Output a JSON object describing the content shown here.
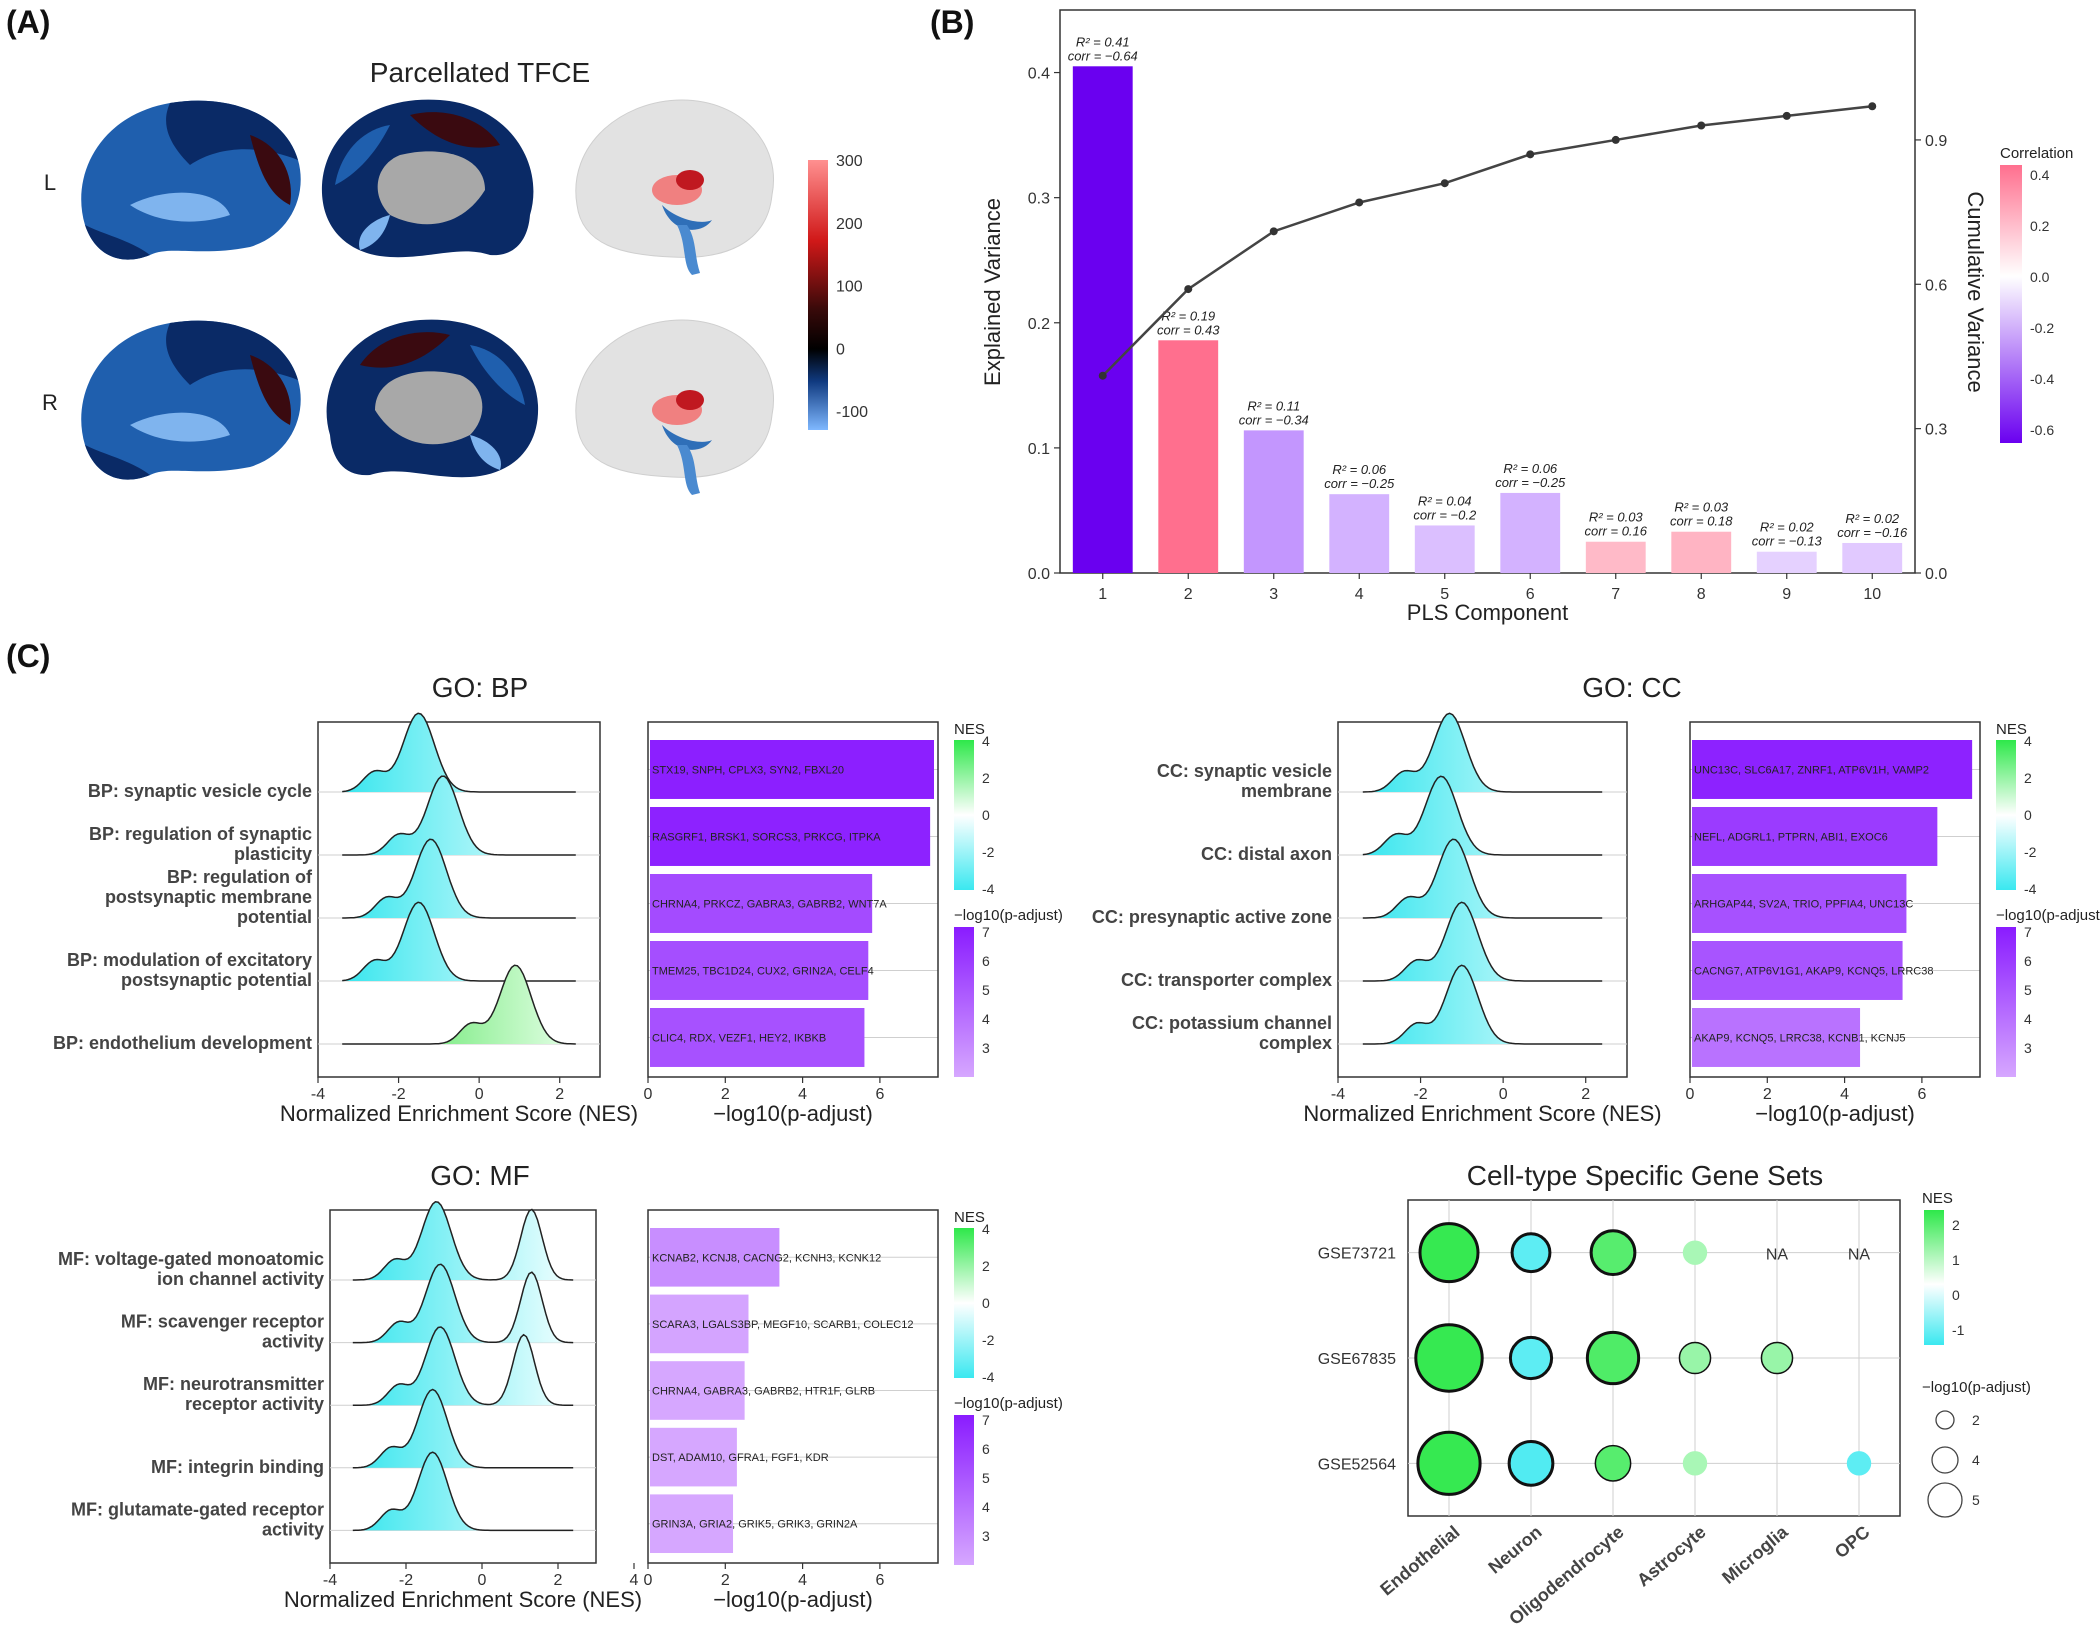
{
  "panels": {
    "a": "(A)",
    "b": "(B)",
    "c": "(C)"
  },
  "brain": {
    "title": "Parcellated TFCE",
    "row_labels": [
      "L",
      "R"
    ],
    "colorbar": {
      "ticks": [
        300,
        200,
        100,
        0,
        -100
      ],
      "min": -130,
      "max": 300
    },
    "colors": {
      "dark_blue": "#0a2a66",
      "mid_blue": "#1f5fae",
      "light_blue": "#7fb4ee",
      "dark_red": "#3a0a10",
      "gray": "#a8a8a8"
    }
  },
  "chart_data": [
    {
      "id": "pls",
      "type": "bar",
      "xlabel": "PLS Component",
      "ylabel": "Explained Variance",
      "y2label": "Cumulative Variance",
      "categories": [
        "1",
        "2",
        "3",
        "4",
        "5",
        "6",
        "7",
        "8",
        "9",
        "10"
      ],
      "values": [
        0.405,
        0.186,
        0.114,
        0.063,
        0.038,
        0.064,
        0.025,
        0.033,
        0.017,
        0.024
      ],
      "cumulative": [
        0.41,
        0.59,
        0.71,
        0.77,
        0.81,
        0.87,
        0.9,
        0.93,
        0.95,
        0.97
      ],
      "correlation": [
        -0.64,
        0.43,
        -0.34,
        -0.25,
        -0.2,
        -0.25,
        0.16,
        0.18,
        -0.13,
        -0.16
      ],
      "annotations_r2": [
        "R² = 0.41",
        "R² = 0.19",
        "R² = 0.11",
        "R² = 0.06",
        "R² = 0.04",
        "R² = 0.06",
        "R² = 0.03",
        "R² = 0.03",
        "R² = 0.02",
        "R² = 0.02"
      ],
      "annotations_corr": [
        "corr = −0.64",
        "corr = 0.43",
        "corr = −0.34",
        "corr = −0.25",
        "corr = −0.2",
        "corr = −0.25",
        "corr = 0.16",
        "corr = 0.18",
        "corr = −0.13",
        "corr = −0.16"
      ],
      "ylim": [
        0,
        0.4
      ],
      "yticks": [
        0.0,
        0.1,
        0.2,
        0.3,
        0.4
      ],
      "y2ticks": [
        0.0,
        0.3,
        0.6,
        0.9
      ],
      "legend": {
        "title": "Correlation",
        "ticks": [
          "0.4",
          "0.2",
          "0.0",
          "-0.2",
          "-0.4",
          "-0.6"
        ]
      }
    },
    {
      "id": "go_bp",
      "type": "ridge_bar",
      "title": "GO: BP",
      "terms": [
        "BP: synaptic vesicle cycle",
        "BP: regulation of synaptic plasticity",
        "BP: regulation of postsynaptic membrane potential",
        "BP: modulation of excitatory postsynaptic potential",
        "BP: endothelium development"
      ],
      "term_lines": [
        [
          "BP: synaptic vesicle cycle"
        ],
        [
          "BP: regulation of synaptic",
          "plasticity"
        ],
        [
          "BP: regulation of",
          "postsynaptic membrane",
          "potential"
        ],
        [
          "BP: modulation of excitatory",
          "postsynaptic potential"
        ],
        [
          "BP: endothelium development"
        ]
      ],
      "ridge_peaks": [
        -1.5,
        -0.9,
        -1.2,
        -1.5,
        0.9
      ],
      "ridge_xlim": [
        -4,
        3
      ],
      "ridge_xticks": [
        -4,
        -2,
        0,
        2
      ],
      "ridge_xlabel": "Normalized Enrichment Score (NES)",
      "bar_values": [
        7.4,
        7.3,
        5.8,
        5.7,
        5.6
      ],
      "bar_genes": [
        "STX19, SNPH, CPLX3, SYN2, FBXL20",
        "RASGRF1, BRSK1, SORCS3, PRKCG, ITPKA",
        "CHRNA4, PRKCZ, GABRA3, GABRB2, WNT7A",
        "TMEM25, TBC1D24, CUX2, GRIN2A, CELF4",
        "CLIC4, RDX, VEZF1, HEY2, IKBKB"
      ],
      "bar_xticks": [
        0,
        2,
        4,
        6
      ],
      "bar_xlabel": "−log10(p-adjust)",
      "legend_nes": {
        "title": "NES",
        "ticks": [
          "4",
          "2",
          "0",
          "-2",
          "-4"
        ]
      },
      "legend_p": {
        "title": "−log10(p-adjust)",
        "ticks": [
          "7",
          "6",
          "5",
          "4",
          "3"
        ]
      }
    },
    {
      "id": "go_cc",
      "type": "ridge_bar",
      "title": "GO: CC",
      "terms": [
        "CC: synaptic vesicle membrane",
        "CC: distal axon",
        "CC: presynaptic active zone",
        "CC: transporter complex",
        "CC: potassium channel complex"
      ],
      "term_lines": [
        [
          "CC: synaptic vesicle",
          "membrane"
        ],
        [
          "CC: distal axon"
        ],
        [
          "CC: presynaptic active zone"
        ],
        [
          "CC: transporter complex"
        ],
        [
          "CC: potassium channel",
          "complex"
        ]
      ],
      "ridge_peaks": [
        -1.3,
        -1.5,
        -1.2,
        -1.0,
        -1.0
      ],
      "ridge_xlim": [
        -4,
        3
      ],
      "ridge_xticks": [
        -4,
        -2,
        0,
        2
      ],
      "ridge_xlabel": "Normalized Enrichment Score (NES)",
      "bar_values": [
        7.3,
        6.4,
        5.6,
        5.5,
        4.4
      ],
      "bar_genes": [
        "UNC13C, SLC6A17, ZNRF1, ATP6V1H, VAMP2",
        "NEFL, ADGRL1, PTPRN, ABI1, EXOC6",
        "ARHGAP44, SV2A, TRIO, PPFIA4, UNC13C",
        "CACNG7, ATP6V1G1, AKAP9, KCNQ5, LRRC38",
        "AKAP9, KCNQ5, LRRC38, KCNB1, KCNJ5"
      ],
      "bar_xticks": [
        0,
        2,
        4,
        6
      ],
      "bar_xlabel": "−log10(p-adjust)",
      "legend_nes": {
        "title": "NES",
        "ticks": [
          "4",
          "2",
          "0",
          "-2",
          "-4"
        ]
      },
      "legend_p": {
        "title": "−log10(p-adjust)",
        "ticks": [
          "7",
          "6",
          "5",
          "4",
          "3"
        ]
      }
    },
    {
      "id": "go_mf",
      "type": "ridge_bar",
      "title": "GO: MF",
      "terms": [
        "MF: voltage-gated monoatomic ion channel activity",
        "MF: scavenger receptor activity",
        "MF: neurotransmitter receptor activity",
        "MF: integrin binding",
        "MF: glutamate-gated receptor activity"
      ],
      "term_lines": [
        [
          "MF: voltage-gated monoatomic",
          "ion channel activity"
        ],
        [
          "MF: scavenger receptor",
          "activity"
        ],
        [
          "MF: neurotransmitter",
          "receptor activity"
        ],
        [
          "MF: integrin binding"
        ],
        [
          "MF: glutamate-gated receptor",
          "activity"
        ]
      ],
      "ridge_peaks": [
        -1.2,
        -1.1,
        -1.1,
        -1.3,
        -1.3
      ],
      "ridge_peaks2": [
        1.3,
        1.3,
        1.1,
        null,
        null
      ],
      "ridge_xlim": [
        -4,
        3
      ],
      "ridge_xticks": [
        -4,
        -2,
        0,
        2,
        4
      ],
      "ridge_xlabel": "Normalized Enrichment Score (NES)",
      "bar_values": [
        3.4,
        2.6,
        2.5,
        2.3,
        2.2
      ],
      "bar_genes": [
        "KCNAB2, KCNJ8, CACNG2, KCNH3, KCNK12",
        "SCARA3, LGALS3BP, MEGF10, SCARB1, COLEC12",
        "CHRNA4, GABRA3, GABRB2, HTR1F, GLRB",
        "DST, ADAM10, GFRA1, FGF1, KDR",
        "GRIN3A, GRIA2, GRIK5, GRIK3, GRIN2A"
      ],
      "bar_xticks": [
        0,
        2,
        4,
        6
      ],
      "bar_xlabel": "−log10(p-adjust)",
      "legend_nes": {
        "title": "NES",
        "ticks": [
          "4",
          "2",
          "0",
          "-2",
          "-4"
        ]
      },
      "legend_p": {
        "title": "−log10(p-adjust)",
        "ticks": [
          "7",
          "6",
          "5",
          "4",
          "3"
        ]
      }
    },
    {
      "id": "celltype",
      "type": "dot",
      "title": "Cell-type Specific Gene Sets",
      "rows": [
        "GSE73721",
        "GSE67835",
        "GSE52564"
      ],
      "cols": [
        "Endothelial",
        "Neuron",
        "Oligodendrocyte",
        "Astrocyte",
        "Microglia",
        "OPC"
      ],
      "na_label": "NA",
      "cells": [
        [
          {
            "nes": 2.2,
            "p": 5.0,
            "sig": true
          },
          {
            "nes": -1.2,
            "p": 2.6,
            "sig": true
          },
          {
            "nes": 1.8,
            "p": 3.3,
            "sig": true
          },
          {
            "nes": 0.8,
            "p": 1.0,
            "sig": false
          },
          null,
          null
        ],
        [
          {
            "nes": 2.2,
            "p": 6.0,
            "sig": true
          },
          {
            "nes": -1.2,
            "p": 3.0,
            "sig": true
          },
          {
            "nes": 1.9,
            "p": 4.2,
            "sig": true
          },
          {
            "nes": 1.0,
            "p": 1.8,
            "sig": true
          },
          {
            "nes": 1.0,
            "p": 1.8,
            "sig": true
          },
          null
        ],
        [
          {
            "nes": 2.2,
            "p": 5.5,
            "sig": true
          },
          {
            "nes": -1.3,
            "p": 3.3,
            "sig": true
          },
          {
            "nes": 1.8,
            "p": 2.3,
            "sig": true
          },
          {
            "nes": 0.8,
            "p": 1.0,
            "sig": false
          },
          null,
          {
            "nes": -1.2,
            "p": 1.0,
            "sig": false
          }
        ]
      ],
      "legend_nes": {
        "title": "NES",
        "ticks": [
          "2",
          "1",
          "0",
          "-1"
        ]
      },
      "legend_size": {
        "title": "−log10(p-adjust)",
        "ticks": [
          "2",
          "4",
          "5"
        ]
      }
    }
  ]
}
